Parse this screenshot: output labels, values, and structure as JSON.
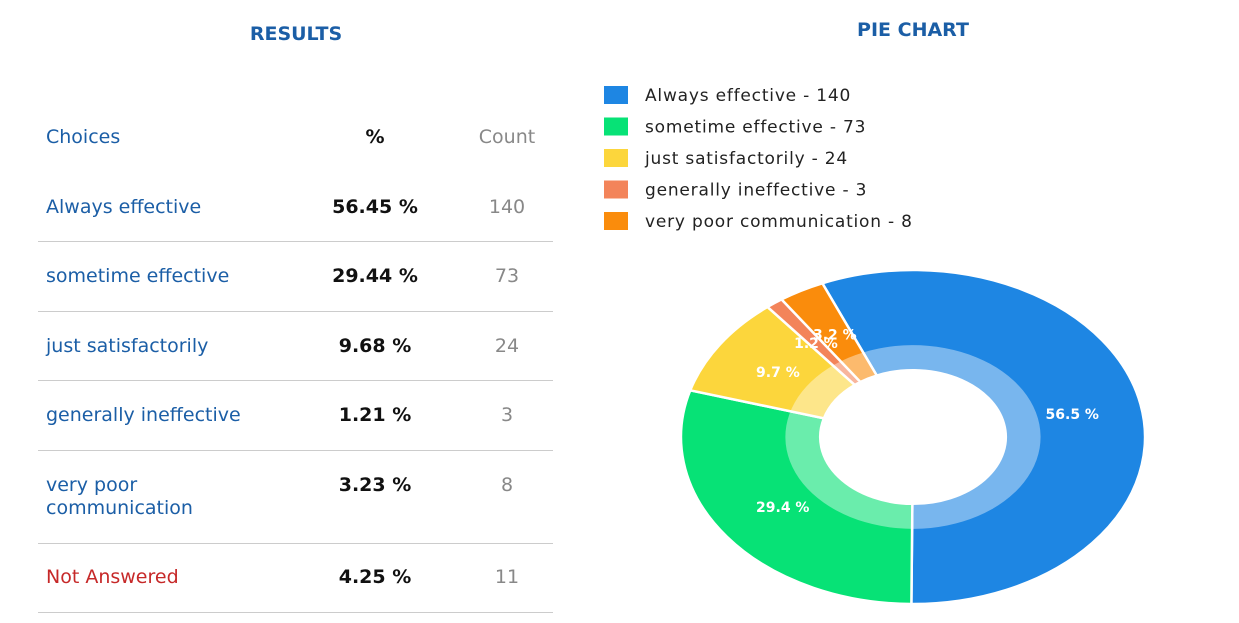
{
  "results": {
    "title": "RESULTS",
    "header": [
      "Choices",
      "%",
      "Count"
    ],
    "rows": [
      [
        "Always effective",
        "56.45 %",
        "140"
      ],
      [
        "sometime effective",
        "29.44 %",
        "73"
      ],
      [
        "just satisfactorily",
        "9.68 %",
        "24"
      ],
      [
        "generally ineffective",
        "1.21 %",
        "3"
      ],
      [
        "very poor communication",
        "3.23 %",
        "8"
      ],
      [
        "Not Answered",
        "4.25 %",
        "11"
      ]
    ]
  },
  "chart_data": {
    "type": "pie",
    "title": "PIE CHART",
    "categories": [
      "Always effective - 140",
      "sometime effective - 73",
      "just satisfactorily - 24",
      "generally ineffective - 3",
      "very poor communication - 8"
    ],
    "values": [
      56.5,
      29.4,
      9.7,
      1.2,
      3.2
    ],
    "value_labels": [
      "56.5 %",
      "29.4 %",
      "9.7 %",
      "1.2 %",
      "3.2 %"
    ],
    "colors": [
      "#1e86e3",
      "#07e276",
      "#fcd63c",
      "#f3845a",
      "#fa8c0c"
    ]
  }
}
